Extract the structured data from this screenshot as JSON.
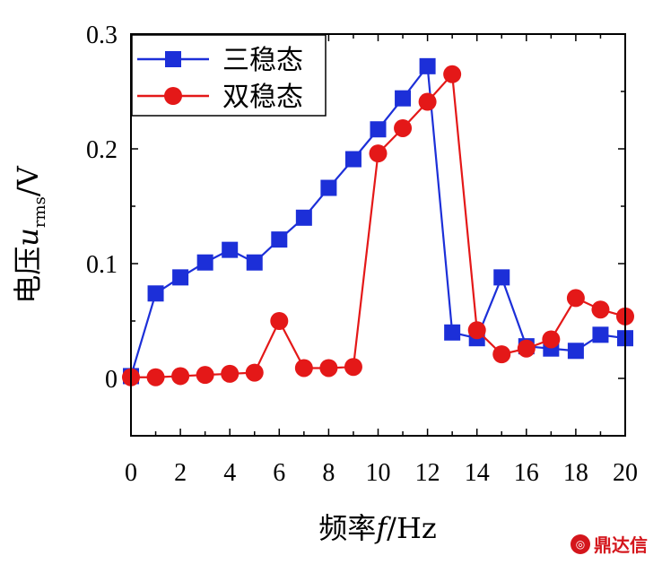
{
  "chart_data": {
    "type": "line",
    "xlabel": {
      "prefix": "频率",
      "italic": "f",
      "suffix": "/Hz"
    },
    "ylabel": {
      "prefix": "电压",
      "italic": "u",
      "sub": "rms",
      "suffix": "/V"
    },
    "xlim": [
      0,
      20
    ],
    "ylim": [
      -0.05,
      0.3
    ],
    "xticks": [
      "0",
      "2",
      "4",
      "6",
      "8",
      "10",
      "12",
      "14",
      "16",
      "18",
      "20"
    ],
    "yticks": [
      {
        "value": 0,
        "label": "0"
      },
      {
        "value": 0.1,
        "label": "0.1"
      },
      {
        "value": 0.2,
        "label": "0.2"
      },
      {
        "value": 0.3,
        "label": "0.3"
      }
    ],
    "legend_position": "top-left",
    "grid": false,
    "x": [
      0,
      1,
      2,
      3,
      4,
      5,
      6,
      7,
      8,
      9,
      10,
      11,
      12,
      13,
      14,
      15,
      16,
      17,
      18,
      19,
      20
    ],
    "series": [
      {
        "name": "三稳态",
        "color": "#1c2fd8",
        "marker": "square",
        "values": [
          0.002,
          0.074,
          0.088,
          0.101,
          0.112,
          0.101,
          0.121,
          0.14,
          0.166,
          0.191,
          0.217,
          0.244,
          0.272,
          0.04,
          0.035,
          0.088,
          0.028,
          0.026,
          0.024,
          0.038,
          0.035
        ]
      },
      {
        "name": "双稳态",
        "color": "#e41818",
        "marker": "circle",
        "values": [
          0.001,
          0.001,
          0.002,
          0.003,
          0.004,
          0.005,
          0.05,
          0.009,
          0.009,
          0.01,
          0.196,
          0.218,
          0.241,
          0.265,
          0.042,
          0.021,
          0.026,
          0.034,
          0.07,
          0.06,
          0.054
        ]
      }
    ]
  },
  "watermark": {
    "text": "鼎达信",
    "icon": "dingdaxin-logo-icon"
  }
}
